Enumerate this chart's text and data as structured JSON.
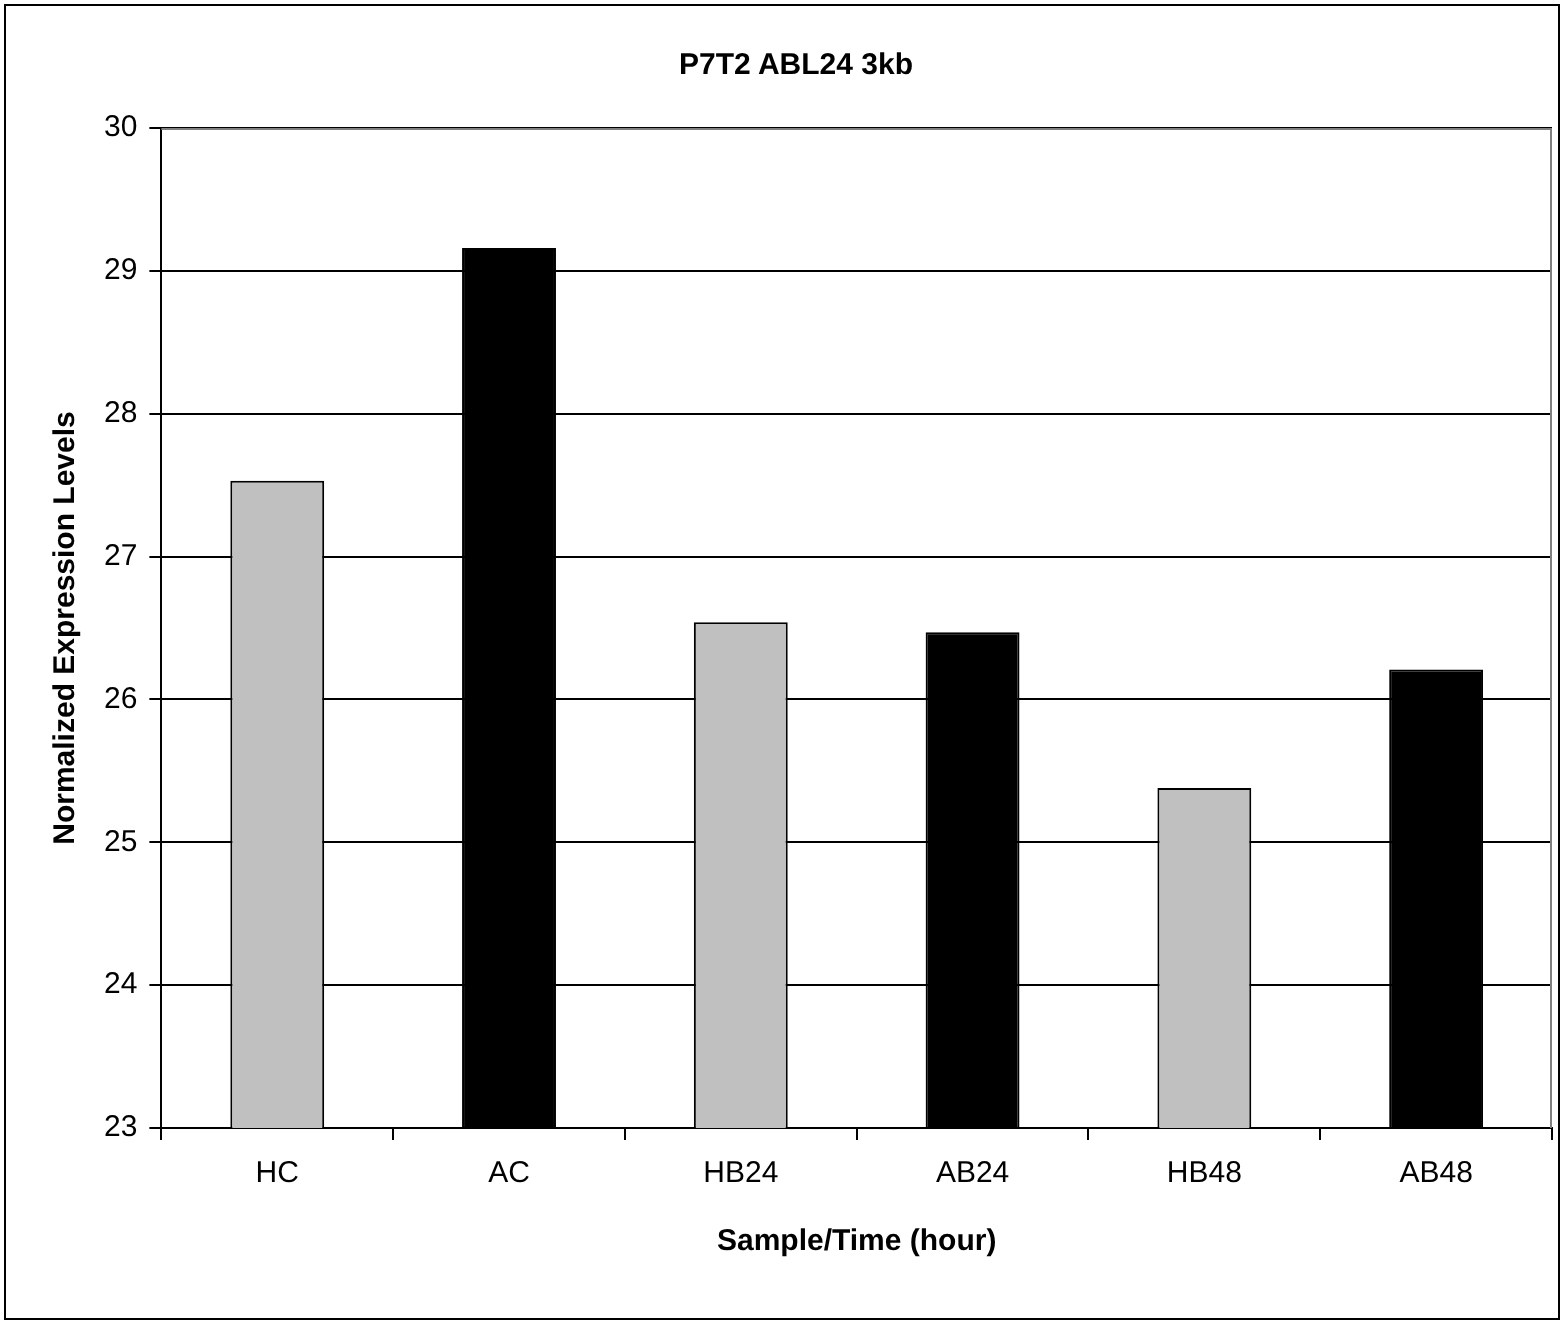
{
  "chart_data": {
    "type": "bar",
    "title": "P7T2 ABL24 3kb",
    "xlabel": "Sample/Time (hour)",
    "ylabel": "Normalized Expression Levels",
    "categories": [
      "HC",
      "AC",
      "HB24",
      "AB24",
      "HB48",
      "AB48"
    ],
    "values": [
      27.53,
      29.16,
      26.54,
      26.47,
      25.38,
      26.21
    ],
    "colors": [
      "#c0c0c0",
      "#000000",
      "#c0c0c0",
      "#000000",
      "#c0c0c0",
      "#000000"
    ],
    "ylim": [
      23,
      30
    ],
    "yticks": [
      23,
      24,
      25,
      26,
      27,
      28,
      29,
      30
    ],
    "grid": "y",
    "legend": false
  }
}
